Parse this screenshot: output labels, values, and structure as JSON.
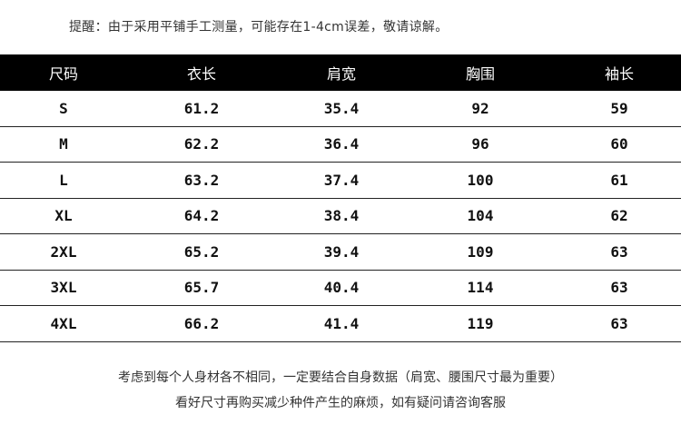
{
  "notice": "提醒：由于采用平铺手工测量，可能存在1-4cm误差，敬请谅解。",
  "table": {
    "headers": [
      "尺码",
      "衣长",
      "肩宽",
      "胸围",
      "袖长"
    ],
    "rows": [
      [
        "S",
        "61.2",
        "35.4",
        "92",
        "59"
      ],
      [
        "M",
        "62.2",
        "36.4",
        "96",
        "60"
      ],
      [
        "L",
        "63.2",
        "37.4",
        "100",
        "61"
      ],
      [
        "XL",
        "64.2",
        "38.4",
        "104",
        "62"
      ],
      [
        "2XL",
        "65.2",
        "39.4",
        "109",
        "63"
      ],
      [
        "3XL",
        "65.7",
        "40.4",
        "114",
        "63"
      ],
      [
        "4XL",
        "66.2",
        "41.4",
        "119",
        "63"
      ]
    ]
  },
  "footer": {
    "line1": "考虑到每个人身材各不相同，一定要结合自身数据（肩宽、腰围尺寸最为重要）",
    "line2": "看好尺寸再购买减少种件产生的麻烦，如有疑问请咨询客服"
  }
}
